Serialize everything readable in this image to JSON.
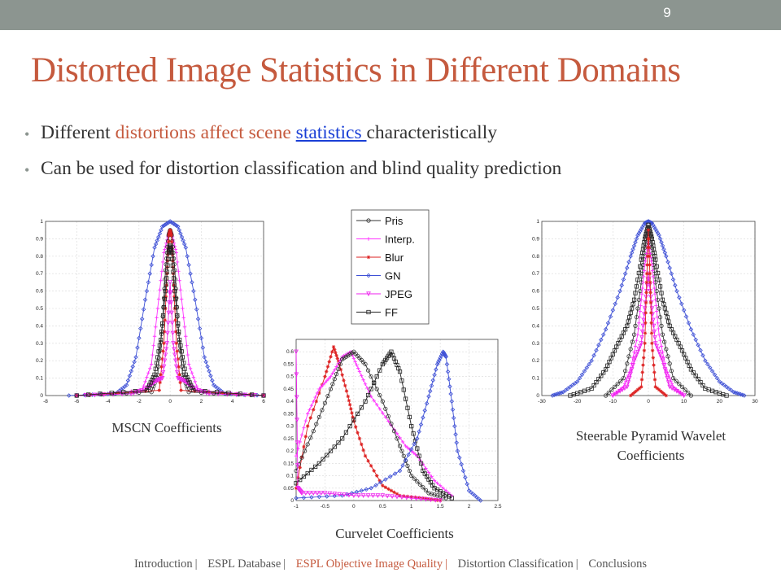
{
  "slide_number": "9",
  "title": "Distorted Image Statistics in Different Domains",
  "bullets": {
    "b1_part1": "Different ",
    "b1_highlight": "distortions affect scene ",
    "b1_link": "statistics ",
    "b1_part2": "characteristically",
    "b2": "Can be used for distortion classification and blind quality prediction"
  },
  "colors": {
    "title": "#c55a3e",
    "link": "#1a3fd6",
    "top_bar": "#8c9590",
    "Pris": "#333333",
    "Interp.": "#ff33ff",
    "Blur": "#dd2222",
    "GN": "#3f51d6",
    "JPEG": "#ee22ee",
    "FF": "#222222"
  },
  "captions": {
    "mscn": "MSCN Coefficients",
    "curvelet": "Curvelet Coefficients",
    "steerable_line1": "Steerable Pyramid Wavelet",
    "steerable_line2": "Coefficients"
  },
  "footer": {
    "items": [
      "Introduction",
      "ESPL Database",
      "ESPL Objective Image Quality",
      "Distortion Classification",
      "Conclusions"
    ],
    "active": "ESPL Objective Image Quality"
  },
  "chart_data": [
    {
      "name": "MSCN Coefficients",
      "type": "line",
      "xlim": [
        -8,
        6
      ],
      "ylim": [
        0,
        1
      ],
      "xticks": [
        "-8",
        "-6",
        "-4",
        "-2",
        "0",
        "2",
        "4",
        "6"
      ],
      "yticks": [
        "0",
        "0.1",
        "0.2",
        "0.3",
        "0.4",
        "0.5",
        "0.6",
        "0.7",
        "0.8",
        "0.9",
        "1"
      ],
      "grid": true,
      "series": [
        {
          "name": "GN",
          "x": [
            -6.5,
            -3.5,
            -2.8,
            -2.2,
            -1.6,
            -1.0,
            -0.5,
            0,
            0.5,
            1.0,
            1.6,
            2.2,
            2.8,
            3.5,
            6
          ],
          "values": [
            0,
            0.01,
            0.06,
            0.22,
            0.55,
            0.85,
            0.97,
            1.0,
            0.97,
            0.85,
            0.55,
            0.22,
            0.06,
            0.01,
            0
          ]
        },
        {
          "name": "Interp.",
          "x": [
            -6,
            -1.8,
            -1.2,
            -0.8,
            -0.4,
            -0.1,
            0,
            0.1,
            0.4,
            0.8,
            1.2,
            1.8,
            6
          ],
          "values": [
            0,
            0.03,
            0.18,
            0.5,
            0.82,
            0.93,
            0.95,
            0.93,
            0.82,
            0.5,
            0.18,
            0.03,
            0
          ]
        },
        {
          "name": "Pris",
          "x": [
            -6,
            -1.2,
            -0.8,
            -0.5,
            -0.3,
            -0.1,
            0,
            0.1,
            0.3,
            0.5,
            0.8,
            1.2,
            6
          ],
          "values": [
            0,
            0.02,
            0.12,
            0.4,
            0.72,
            0.92,
            0.95,
            0.92,
            0.72,
            0.4,
            0.12,
            0.02,
            0
          ]
        },
        {
          "name": "Blur",
          "x": [
            -6,
            -0.7,
            -0.4,
            -0.2,
            -0.08,
            0,
            0.08,
            0.2,
            0.4,
            0.7,
            6
          ],
          "values": [
            0,
            0.03,
            0.3,
            0.7,
            0.92,
            0.95,
            0.92,
            0.7,
            0.3,
            0.03,
            0
          ]
        },
        {
          "name": "JPEG",
          "x": [
            -6,
            -2.5,
            -1.5,
            -1.0,
            -0.5,
            -0.2,
            0,
            0.2,
            0.5,
            1.0,
            1.5,
            2.5,
            6
          ],
          "values": [
            0,
            0.01,
            0.04,
            0.08,
            0.1,
            0.3,
            0.65,
            0.3,
            0.1,
            0.08,
            0.04,
            0.01,
            0
          ]
        },
        {
          "name": "FF",
          "x": [
            -6,
            -1.5,
            -1.0,
            -0.6,
            -0.3,
            -0.1,
            0,
            0.1,
            0.3,
            0.6,
            1.0,
            1.5,
            6
          ],
          "values": [
            0,
            0.03,
            0.12,
            0.32,
            0.6,
            0.82,
            0.86,
            0.82,
            0.6,
            0.32,
            0.12,
            0.03,
            0
          ]
        }
      ]
    },
    {
      "name": "Curvelet Coefficients",
      "type": "line",
      "xlim": [
        -1,
        2.5
      ],
      "ylim": [
        0,
        0.65
      ],
      "xticks": [
        "-1",
        "-0.5",
        "0",
        "0.5",
        "1",
        "1.5",
        "2",
        "2.5"
      ],
      "yticks": [
        "0",
        "0.05",
        "0.1",
        "0.15",
        "0.2",
        "0.25",
        "0.3",
        "0.35",
        "0.4",
        "0.45",
        "0.5",
        "0.55",
        "0.6"
      ],
      "legend": [
        "Pris",
        "Interp.",
        "Blur",
        "GN",
        "JPEG",
        "FF"
      ],
      "grid": true,
      "series": [
        {
          "name": "Blur",
          "x": [
            -1,
            -0.8,
            -0.5,
            -0.35,
            -0.25,
            -0.1,
            0,
            0.2,
            0.5,
            0.8,
            1.2,
            1.5
          ],
          "values": [
            0.05,
            0.3,
            0.5,
            0.62,
            0.55,
            0.42,
            0.32,
            0.18,
            0.06,
            0.02,
            0.01,
            0
          ]
        },
        {
          "name": "Interp.",
          "x": [
            -1,
            -0.8,
            -0.6,
            -0.4,
            -0.2,
            -0.05,
            0.1,
            0.3,
            0.6,
            0.9,
            1.1,
            1.4,
            1.7
          ],
          "values": [
            0.18,
            0.35,
            0.45,
            0.5,
            0.58,
            0.6,
            0.52,
            0.42,
            0.32,
            0.22,
            0.18,
            0.08,
            0.02
          ]
        },
        {
          "name": "Pris",
          "x": [
            -1,
            -0.7,
            -0.4,
            -0.2,
            0,
            0.2,
            0.5,
            0.8,
            1.0,
            1.3,
            1.6
          ],
          "values": [
            0.12,
            0.28,
            0.45,
            0.57,
            0.6,
            0.55,
            0.4,
            0.22,
            0.1,
            0.03,
            0.01
          ]
        },
        {
          "name": "FF",
          "x": [
            -1,
            -0.6,
            -0.2,
            0.2,
            0.5,
            0.65,
            0.8,
            1.0,
            1.2,
            1.4,
            1.7
          ],
          "values": [
            0.07,
            0.15,
            0.25,
            0.4,
            0.55,
            0.6,
            0.52,
            0.3,
            0.12,
            0.05,
            0.01
          ]
        },
        {
          "name": "GN",
          "x": [
            -1,
            -0.2,
            0.3,
            0.8,
            1.1,
            1.3,
            1.45,
            1.55,
            1.6,
            1.7,
            1.8,
            2.0,
            2.2
          ],
          "values": [
            0.01,
            0.02,
            0.05,
            0.12,
            0.25,
            0.42,
            0.55,
            0.6,
            0.58,
            0.4,
            0.2,
            0.04,
            0
          ]
        },
        {
          "name": "JPEG",
          "x": [
            -1,
            -0.97,
            -0.9,
            -0.5,
            0,
            0.5,
            1.0,
            1.5
          ],
          "values": [
            0.6,
            0.05,
            0.03,
            0.03,
            0.02,
            0.02,
            0.01,
            0
          ]
        }
      ]
    },
    {
      "name": "Steerable Pyramid Wavelet Coefficients",
      "type": "line",
      "xlim": [
        -30,
        30
      ],
      "ylim": [
        0,
        1
      ],
      "xticks": [
        "-30",
        "-20",
        "-10",
        "0",
        "10",
        "20",
        "30"
      ],
      "yticks": [
        "0",
        "0.1",
        "0.2",
        "0.3",
        "0.4",
        "0.5",
        "0.6",
        "0.7",
        "0.8",
        "0.9",
        "1"
      ],
      "grid": true,
      "series": [
        {
          "name": "GN",
          "x": [
            -27,
            -24,
            -20,
            -16,
            -12,
            -8,
            -5,
            -3,
            -1,
            0,
            1,
            3,
            5,
            8,
            12,
            16,
            20,
            24,
            27
          ],
          "values": [
            0,
            0.02,
            0.08,
            0.2,
            0.38,
            0.6,
            0.8,
            0.92,
            0.99,
            1.0,
            0.99,
            0.92,
            0.8,
            0.6,
            0.38,
            0.2,
            0.08,
            0.02,
            0
          ]
        },
        {
          "name": "FF",
          "x": [
            -22,
            -16,
            -12,
            -9,
            -6,
            -4,
            -2,
            -1,
            0,
            1,
            2,
            4,
            6,
            9,
            12,
            16,
            22
          ],
          "values": [
            0,
            0.04,
            0.15,
            0.28,
            0.4,
            0.55,
            0.78,
            0.9,
            0.98,
            0.9,
            0.78,
            0.55,
            0.4,
            0.28,
            0.15,
            0.04,
            0
          ]
        },
        {
          "name": "Pris",
          "x": [
            -12,
            -7,
            -4,
            -2,
            -1,
            0,
            1,
            2,
            4,
            7,
            12
          ],
          "values": [
            0,
            0.1,
            0.35,
            0.65,
            0.85,
            0.98,
            0.85,
            0.65,
            0.35,
            0.1,
            0
          ]
        },
        {
          "name": "Interp.",
          "x": [
            -10,
            -7,
            -5,
            -3,
            -2,
            -1,
            0,
            1,
            2,
            3,
            5,
            7,
            10
          ],
          "values": [
            0,
            0.05,
            0.15,
            0.35,
            0.55,
            0.75,
            0.88,
            0.75,
            0.55,
            0.35,
            0.15,
            0.05,
            0
          ]
        },
        {
          "name": "JPEG",
          "x": [
            -10,
            -6,
            -4,
            -2,
            -1,
            0,
            1,
            2,
            4,
            6,
            10
          ],
          "values": [
            0,
            0.05,
            0.2,
            0.3,
            0.5,
            0.7,
            0.5,
            0.3,
            0.2,
            0.05,
            0
          ]
        },
        {
          "name": "Blur",
          "x": [
            -5,
            -2,
            -1,
            -0.5,
            0,
            0.5,
            1,
            2,
            5
          ],
          "values": [
            0,
            0.05,
            0.3,
            0.65,
            0.95,
            0.65,
            0.3,
            0.05,
            0
          ]
        }
      ]
    }
  ]
}
